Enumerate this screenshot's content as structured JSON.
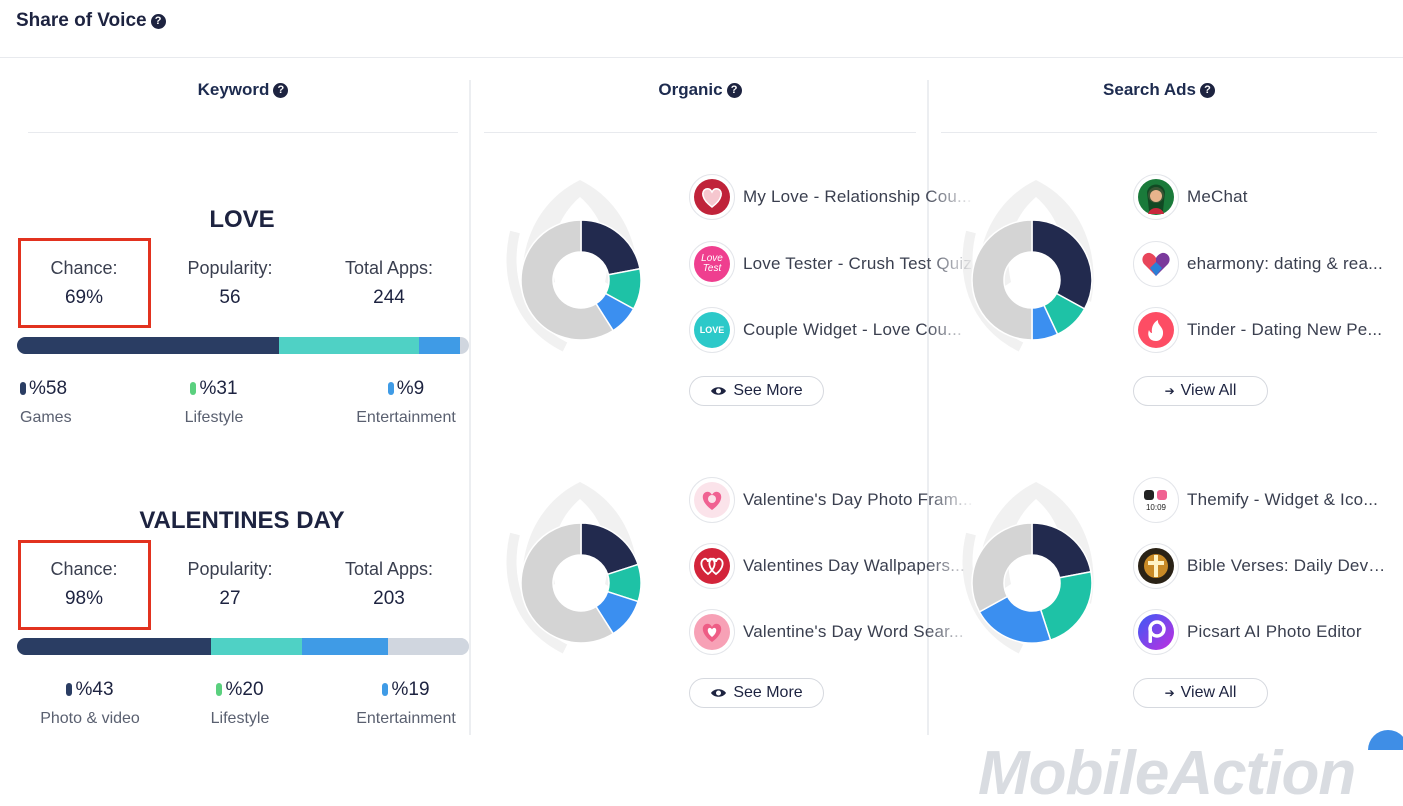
{
  "header": {
    "title": "Share of Voice"
  },
  "columns": {
    "keyword": "Keyword",
    "organic": "Organic",
    "search_ads": "Search Ads"
  },
  "labels": {
    "chance": "Chance:",
    "popularity": "Popularity:",
    "total_apps": "Total Apps:"
  },
  "colors": {
    "navy": "#2a3d63",
    "teal": "#4fd1c5",
    "blue": "#3f9be6",
    "gray": "#d0d6df",
    "highlight": "#e2321f",
    "donut_navy": "#222a4e",
    "donut_teal": "#1ec2a6",
    "donut_blue": "#3b8ff0",
    "donut_gray": "#d4d4d4"
  },
  "keywords": [
    {
      "name": "LOVE",
      "chance": "69%",
      "popularity": "56",
      "total_apps": "244",
      "bar_shares": [
        58,
        31,
        9
      ],
      "legend": [
        {
          "pct": "%58",
          "category": "Games"
        },
        {
          "pct": "%31",
          "category": "Lifestyle"
        },
        {
          "pct": "%9",
          "category": "Entertainment"
        }
      ],
      "organic": {
        "donut_shares": [
          22,
          11,
          8,
          59
        ],
        "apps": [
          {
            "name": "My Love - Relationship Cou...",
            "icon": "heart-icon"
          },
          {
            "name": "Love Tester - Crush Test Quiz",
            "icon": "love-test-icon"
          },
          {
            "name": "Couple Widget - Love Cou...",
            "icon": "love-badge-icon"
          }
        ],
        "button": "See More"
      },
      "search_ads": {
        "donut_shares": [
          33,
          10,
          7,
          50
        ],
        "apps": [
          {
            "name": "MeChat",
            "icon": "mechat-icon"
          },
          {
            "name": "eharmony: dating & rea...",
            "icon": "eharmony-icon"
          },
          {
            "name": "Tinder - Dating New Pe...",
            "icon": "tinder-icon"
          }
        ],
        "button": "View All"
      }
    },
    {
      "name": "VALENTINES DAY",
      "chance": "98%",
      "popularity": "27",
      "total_apps": "203",
      "bar_shares": [
        43,
        20,
        19,
        18
      ],
      "legend": [
        {
          "pct": "%43",
          "category": "Photo & video"
        },
        {
          "pct": "%20",
          "category": "Lifestyle"
        },
        {
          "pct": "%19",
          "category": "Entertainment"
        }
      ],
      "organic": {
        "donut_shares": [
          20,
          10,
          11,
          59
        ],
        "apps": [
          {
            "name": "Valentine's Day Photo Fram...",
            "icon": "valentine-photo-icon"
          },
          {
            "name": "Valentines Day Wallpapers...",
            "icon": "valentine-wallpaper-icon"
          },
          {
            "name": "Valentine's Day Word Sear...",
            "icon": "valentine-word-icon"
          }
        ],
        "button": "See More"
      },
      "search_ads": {
        "donut_shares": [
          22,
          23,
          22,
          33
        ],
        "apps": [
          {
            "name": "Themify - Widget & Ico...",
            "icon": "themify-icon"
          },
          {
            "name": "Bible Verses: Daily Devo...",
            "icon": "bible-icon"
          },
          {
            "name": "Picsart AI Photo Editor",
            "icon": "picsart-icon"
          }
        ],
        "button": "View All"
      }
    }
  ],
  "themify_time": "10:09",
  "love_test_text": "Love Test",
  "love_badge_text": "LOVE",
  "brand": "MobileAction"
}
